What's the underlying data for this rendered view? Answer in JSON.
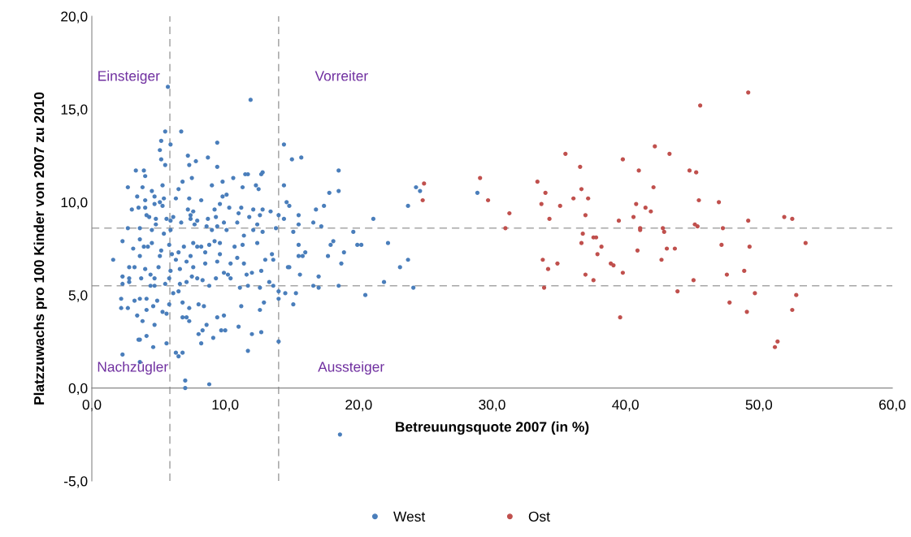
{
  "chart_data": {
    "type": "scatter",
    "xlabel": "Betreuungsquote 2007 (in %)",
    "ylabel": "Platzzuwachs pro 100 Kinder von 2007 zu 2010",
    "xlim": [
      0,
      60
    ],
    "ylim": [
      -5,
      20
    ],
    "xticks": [
      {
        "value": 0,
        "label": "0,0"
      },
      {
        "value": 10,
        "label": "10,0"
      },
      {
        "value": 20,
        "label": "20,0"
      },
      {
        "value": 30,
        "label": "30,0"
      },
      {
        "value": 40,
        "label": "40,0"
      },
      {
        "value": 50,
        "label": "50,0"
      },
      {
        "value": 60,
        "label": "60,0"
      }
    ],
    "yticks": [
      {
        "value": -5,
        "label": "-5,0"
      },
      {
        "value": 0,
        "label": "0,0"
      },
      {
        "value": 5,
        "label": "5,0"
      },
      {
        "value": 10,
        "label": "10,0"
      },
      {
        "value": 15,
        "label": "15,0"
      },
      {
        "value": 20,
        "label": "20,0"
      }
    ],
    "grid": false,
    "legend": "bottom",
    "marker": "circle",
    "ref_lines": [
      {
        "axis": "x",
        "value": 5.85,
        "color": "#a6a6a6",
        "line_style": "dashed"
      },
      {
        "axis": "x",
        "value": 14.0,
        "color": "#a6a6a6",
        "line_style": "dashed"
      },
      {
        "axis": "y",
        "value": 8.6,
        "color": "#a6a6a6",
        "line_style": "dashed"
      },
      {
        "axis": "y",
        "value": 5.5,
        "color": "#a6a6a6",
        "line_style": "dashed"
      }
    ],
    "annotations": [
      "Einsteiger",
      "Vorreiter",
      "Nachzügler",
      "Aussteiger"
    ],
    "series": [
      {
        "name": "West",
        "color": "#4a7ebb",
        "x": [
          14.4,
          15.0,
          15.7,
          18.5,
          14.4,
          14.6,
          14.8,
          14.0,
          14.4,
          15.5,
          15.5,
          15.1,
          16.8,
          17.4,
          17.8,
          18.5,
          16.6,
          17.2,
          21.1,
          19.6,
          18.1,
          17.9,
          19.9,
          20.2,
          22.2,
          15.5,
          16.0,
          15.5,
          15.8,
          17.7,
          18.9,
          18.7,
          14.7,
          15.6,
          17.0,
          16.6,
          17.0,
          18.5,
          14.0,
          14.5,
          15.3,
          14.0,
          15.1,
          20.5,
          21.9,
          23.1,
          23.7,
          24.1,
          23.7,
          24.3,
          24.6,
          28.9,
          14.0,
          18.6,
          5.7,
          11.9,
          5.5,
          6.7,
          5.2,
          5.9,
          9.4,
          5.1,
          5.2,
          5.5,
          7.2,
          7.3,
          7.8,
          8.7,
          9.4,
          3.3,
          3.9,
          4.0,
          2.7,
          3.8,
          5.3,
          6.8,
          7.5,
          9.8,
          10.6,
          11.5,
          11.7,
          12.7,
          12.8,
          11.3,
          12.3,
          12.5,
          3.4,
          4.0,
          4.5,
          4.7,
          5.4,
          6.5,
          6.3,
          7.3,
          8.2,
          9.0,
          9.8,
          10.1,
          3.0,
          3.5,
          4.0,
          4.7,
          5.1,
          5.3,
          7.2,
          7.6,
          9.2,
          9.6,
          10.3,
          11.2,
          12.1,
          12.8,
          13.4,
          4.1,
          4.3,
          4.8,
          4.8,
          5.6,
          5.9,
          6.1,
          7.4,
          7.4,
          7.9,
          8.7,
          9.3,
          11.0,
          10.9,
          11.8,
          12.6,
          6.7,
          7.7,
          8.6,
          9.4,
          9.9,
          12.4,
          2.7,
          3.6,
          4.5,
          5.4,
          5.9,
          9.0,
          10.1,
          11.4,
          12.1,
          12.8,
          13.8,
          1.6,
          2.3,
          3.1,
          3.6,
          3.9,
          4.2,
          4.5,
          3.6,
          2.8,
          3.2,
          2.3,
          2.8,
          3.7,
          4.0,
          4.4,
          4.7,
          5.0,
          5.1,
          5.2,
          5.8,
          5.9,
          6.0,
          6.3,
          6.5,
          6.6,
          6.9,
          7.1,
          7.4,
          7.6,
          7.6,
          7.9,
          8.2,
          8.5,
          8.5,
          8.8,
          9.2,
          9.4,
          9.6,
          9.6,
          9.9,
          10.2,
          10.4,
          10.7,
          10.9,
          11.3,
          11.4,
          11.6,
          12.0,
          12.4,
          12.7,
          13.0,
          13.6,
          13.5,
          14.8,
          2.3,
          2.8,
          4.4,
          4.7,
          5.5,
          5.8,
          6.6,
          7.1,
          7.5,
          7.9,
          8.3,
          8.8,
          9.3,
          10.4,
          11.1,
          11.7,
          12.6,
          13.3,
          13.6,
          2.2,
          2.7,
          2.2,
          3.2,
          3.6,
          4.1,
          4.6,
          4.9,
          5.3,
          5.6,
          5.8,
          3.4,
          4.1,
          4.7,
          3.8,
          6.1,
          6.5,
          6.8,
          6.8,
          7.3,
          7.3,
          7.1,
          8.0,
          8.4,
          8.3,
          8.0,
          8.2,
          8.6,
          9.1,
          9.4,
          9.7,
          10.0,
          9.9,
          11.0,
          11.2,
          12.0,
          11.7,
          12.7,
          12.6,
          12.9,
          3.5,
          3.6,
          4.1,
          4.6,
          5.6,
          2.3,
          3.6,
          6.3,
          6.5,
          6.8,
          7.0,
          7.0,
          8.8
        ],
        "values": [
          13.1,
          12.3,
          12.4,
          11.7,
          10.9,
          10.0,
          9.8,
          9.3,
          9.1,
          9.3,
          8.8,
          8.4,
          9.6,
          9.8,
          10.5,
          10.6,
          8.9,
          8.7,
          9.1,
          8.4,
          7.9,
          7.7,
          7.7,
          7.7,
          7.8,
          7.7,
          7.3,
          7.1,
          7.1,
          7.1,
          7.3,
          6.7,
          6.5,
          6.1,
          6.0,
          5.5,
          5.4,
          5.5,
          5.2,
          5.1,
          5.1,
          4.8,
          4.5,
          5.0,
          5.7,
          6.5,
          6.9,
          5.4,
          9.8,
          10.8,
          10.6,
          10.5,
          2.5,
          -2.5,
          16.2,
          15.5,
          13.8,
          13.8,
          13.3,
          13.1,
          13.2,
          12.8,
          12.3,
          12.0,
          12.5,
          12.0,
          12.2,
          12.4,
          11.9,
          11.7,
          11.7,
          11.4,
          10.8,
          10.8,
          10.9,
          11.1,
          11.3,
          11.1,
          11.3,
          11.5,
          11.5,
          11.5,
          11.6,
          10.8,
          10.9,
          10.7,
          10.3,
          10.1,
          10.6,
          10.3,
          10.2,
          10.7,
          10.2,
          10.2,
          10.1,
          10.9,
          10.3,
          10.4,
          9.6,
          9.7,
          9.7,
          9.9,
          10.0,
          9.8,
          9.6,
          9.5,
          9.6,
          9.9,
          9.7,
          9.7,
          9.6,
          9.6,
          9.5,
          9.3,
          9.2,
          9.1,
          8.8,
          9.1,
          9.0,
          9.2,
          9.3,
          9.1,
          9.0,
          9.1,
          9.2,
          9.4,
          8.9,
          9.2,
          9.3,
          8.9,
          8.8,
          8.7,
          8.7,
          8.9,
          8.8,
          8.6,
          8.6,
          8.5,
          8.3,
          8.5,
          8.5,
          8.5,
          8.2,
          8.5,
          8.4,
          8.6,
          6.9,
          7.9,
          7.5,
          8.0,
          7.6,
          7.6,
          7.8,
          7.1,
          6.5,
          6.5,
          6.0,
          5.9,
          5.9,
          6.4,
          6.1,
          5.9,
          6.5,
          7.1,
          7.4,
          7.7,
          6.3,
          7.2,
          6.9,
          7.3,
          6.4,
          7.6,
          6.8,
          7.1,
          6.5,
          7.8,
          7.6,
          7.6,
          7.3,
          6.7,
          7.7,
          7.9,
          6.8,
          7.8,
          7.2,
          6.2,
          6.1,
          6.7,
          7.6,
          7.0,
          7.7,
          6.7,
          6.1,
          6.2,
          7.8,
          6.3,
          6.9,
          6.9,
          7.2,
          6.5,
          5.6,
          5.7,
          5.5,
          5.5,
          5.6,
          5.9,
          5.6,
          5.7,
          6.0,
          5.9,
          5.8,
          5.5,
          5.9,
          5.9,
          5.4,
          5.5,
          5.4,
          5.7,
          5.5,
          4.8,
          4.3,
          4.3,
          4.7,
          4.8,
          4.8,
          4.4,
          4.7,
          4.1,
          4.0,
          4.5,
          3.9,
          4.2,
          3.4,
          3.6,
          5.1,
          5.2,
          4.6,
          3.8,
          3.6,
          4.3,
          3.8,
          4.5,
          4.4,
          3.1,
          2.9,
          2.4,
          3.4,
          2.7,
          3.8,
          3.1,
          3.1,
          3.9,
          3.3,
          4.4,
          2.9,
          2.0,
          3.0,
          4.2,
          4.6,
          2.6,
          2.6,
          2.8,
          2.2,
          2.4,
          1.8,
          1.4,
          1.9,
          1.7,
          1.9,
          0.4,
          0.0,
          0.2
        ]
      },
      {
        "name": "Ost",
        "color": "#c0504d",
        "x": [
          49.2,
          45.6,
          35.5,
          36.6,
          39.8,
          41.0,
          42.2,
          43.3,
          44.8,
          45.3,
          33.4,
          34.0,
          33.7,
          34.3,
          35.1,
          36.1,
          36.7,
          37.2,
          37.0,
          29.7,
          31.3,
          31.0,
          39.5,
          40.6,
          40.8,
          41.5,
          41.9,
          42.1,
          41.1,
          41.1,
          42.8,
          42.9,
          45.5,
          45.2,
          45.4,
          47.0,
          49.2,
          47.3,
          51.9,
          52.5,
          53.5,
          47.2,
          49.3,
          36.8,
          36.7,
          37.6,
          37.8,
          38.2,
          37.9,
          40.9,
          43.1,
          43.7,
          42.7,
          33.8,
          34.2,
          34.9,
          38.9,
          39.1,
          37.0,
          37.6,
          39.8,
          45.1,
          47.6,
          48.9,
          33.9,
          43.9,
          49.7,
          52.8,
          47.8,
          49.1,
          52.5,
          39.6,
          51.4,
          51.2,
          24.9,
          24.8,
          29.1
        ],
        "values": [
          15.9,
          15.2,
          12.6,
          11.9,
          12.3,
          11.7,
          13.0,
          12.6,
          11.7,
          11.6,
          11.1,
          10.5,
          9.9,
          9.1,
          9.8,
          10.2,
          10.7,
          10.2,
          9.3,
          10.1,
          9.4,
          8.6,
          9.0,
          9.2,
          9.9,
          9.7,
          9.5,
          10.8,
          8.6,
          8.5,
          8.6,
          8.4,
          10.1,
          8.8,
          8.7,
          10.0,
          9.0,
          8.6,
          9.2,
          9.1,
          7.8,
          7.7,
          7.6,
          8.3,
          7.8,
          8.1,
          8.1,
          7.6,
          7.2,
          7.4,
          7.5,
          7.5,
          6.9,
          6.9,
          6.4,
          6.7,
          6.7,
          6.6,
          6.1,
          5.8,
          6.2,
          5.8,
          6.1,
          6.3,
          5.4,
          5.2,
          5.1,
          5.0,
          4.6,
          4.1,
          4.2,
          3.8,
          2.5,
          2.2,
          11.0,
          10.1,
          11.3
        ]
      }
    ]
  }
}
